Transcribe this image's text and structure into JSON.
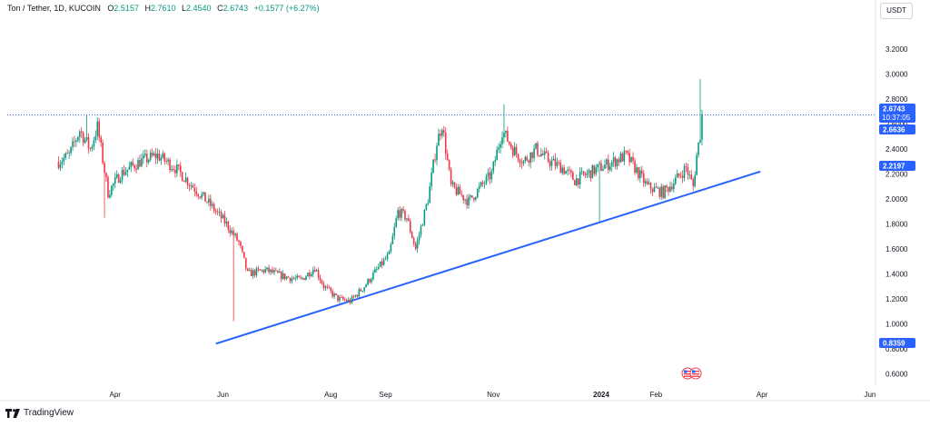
{
  "header": {
    "symbol": "Ton / Tether, 1D, KUCOIN",
    "o_label": "O",
    "o_value": "2.5157",
    "h_label": "H",
    "h_value": "2.7610",
    "l_label": "L",
    "l_value": "2.4540",
    "c_label": "C",
    "c_value": "2.6743",
    "change": "+0.1577 (+6.27%)"
  },
  "currency_button": "USDT",
  "footer": {
    "brand": "TradingView"
  },
  "colors": {
    "up": "#089981",
    "down": "#f23645",
    "line": "#2962ff",
    "price_label": "#2962ff"
  },
  "chart_data": {
    "type": "candlestick",
    "y_axis": {
      "range": [
        0.5,
        3.42
      ],
      "ticks": [
        "0.6000",
        "0.8000",
        "1.0000",
        "1.2000",
        "1.4000",
        "1.6000",
        "1.8000",
        "2.0000",
        "2.2000",
        "2.4000",
        "2.6000",
        "2.8000",
        "3.0000",
        "3.2000"
      ]
    },
    "x_axis": {
      "ticks": [
        {
          "label": "Apr",
          "x": "2023-04-01"
        },
        {
          "label": "Jun",
          "x": "2023-06-01"
        },
        {
          "label": "Aug",
          "x": "2023-08-01"
        },
        {
          "label": "Sep",
          "x": "2023-09-01"
        },
        {
          "label": "Nov",
          "x": "2023-11-01"
        },
        {
          "label": "2024",
          "x": "2024-01-01"
        },
        {
          "label": "Feb",
          "x": "2024-02-01"
        },
        {
          "label": "Apr",
          "x": "2024-04-01"
        },
        {
          "label": "Jun",
          "x": "2024-06-01"
        }
      ]
    },
    "price_line": 2.6743,
    "price_labels": [
      {
        "value": "2.6743",
        "sub": "10:37:05",
        "color": "#2962ff"
      },
      {
        "value": "2.6636",
        "color": "#2962ff"
      },
      {
        "value": "2.2197",
        "color": "#2962ff"
      },
      {
        "value": "0.8359",
        "color": "#2962ff"
      }
    ],
    "trendline": {
      "start": {
        "date": "2023-05-28",
        "value": 0.84
      },
      "end": {
        "date": "2024-03-31",
        "value": 2.22
      }
    },
    "anchor_closes": [
      [
        "2023-02-28",
        2.3
      ],
      [
        "2023-03-06",
        2.35
      ],
      [
        "2023-03-12",
        2.55
      ],
      [
        "2023-03-18",
        2.4
      ],
      [
        "2023-03-22",
        2.58
      ],
      [
        "2023-03-28",
        2.05
      ],
      [
        "2023-04-04",
        2.2
      ],
      [
        "2023-04-15",
        2.3
      ],
      [
        "2023-04-25",
        2.35
      ],
      [
        "2023-05-05",
        2.25
      ],
      [
        "2023-05-15",
        2.1
      ],
      [
        "2023-05-25",
        1.95
      ],
      [
        "2023-06-03",
        1.8
      ],
      [
        "2023-06-10",
        1.65
      ],
      [
        "2023-06-15",
        1.4
      ],
      [
        "2023-06-25",
        1.43
      ],
      [
        "2023-07-05",
        1.38
      ],
      [
        "2023-07-15",
        1.35
      ],
      [
        "2023-07-23",
        1.45
      ],
      [
        "2023-07-28",
        1.3
      ],
      [
        "2023-08-05",
        1.2
      ],
      [
        "2023-08-12",
        1.18
      ],
      [
        "2023-08-20",
        1.3
      ],
      [
        "2023-08-28",
        1.45
      ],
      [
        "2023-09-03",
        1.55
      ],
      [
        "2023-09-08",
        1.9
      ],
      [
        "2023-09-13",
        1.85
      ],
      [
        "2023-09-18",
        1.6
      ],
      [
        "2023-09-25",
        2.0
      ],
      [
        "2023-09-30",
        2.45
      ],
      [
        "2023-10-03",
        2.6
      ],
      [
        "2023-10-08",
        2.1
      ],
      [
        "2023-10-18",
        1.98
      ],
      [
        "2023-10-25",
        2.1
      ],
      [
        "2023-10-31",
        2.2
      ],
      [
        "2023-11-06",
        2.55
      ],
      [
        "2023-11-12",
        2.4
      ],
      [
        "2023-11-18",
        2.3
      ],
      [
        "2023-11-25",
        2.4
      ],
      [
        "2023-12-03",
        2.3
      ],
      [
        "2023-12-10",
        2.25
      ],
      [
        "2023-12-17",
        2.15
      ],
      [
        "2023-12-24",
        2.2
      ],
      [
        "2023-12-31",
        2.25
      ],
      [
        "2024-01-08",
        2.3
      ],
      [
        "2024-01-15",
        2.35
      ],
      [
        "2024-01-20",
        2.25
      ],
      [
        "2024-01-27",
        2.1
      ],
      [
        "2024-02-05",
        2.05
      ],
      [
        "2024-02-12",
        2.15
      ],
      [
        "2024-02-18",
        2.25
      ],
      [
        "2024-02-22",
        2.1
      ],
      [
        "2024-02-24",
        2.35
      ],
      [
        "2024-02-26",
        2.52
      ],
      [
        "2024-02-27",
        2.67
      ]
    ],
    "low_wicks": [
      [
        "2023-06-07",
        1.02
      ],
      [
        "2023-03-26",
        1.85
      ],
      [
        "2023-12-31",
        1.82
      ]
    ],
    "high_wicks": [
      [
        "2024-02-26",
        2.96
      ],
      [
        "2023-11-07",
        2.76
      ],
      [
        "2023-03-16",
        2.67
      ]
    ],
    "event_icons": [
      "US flag",
      "US flag"
    ]
  }
}
